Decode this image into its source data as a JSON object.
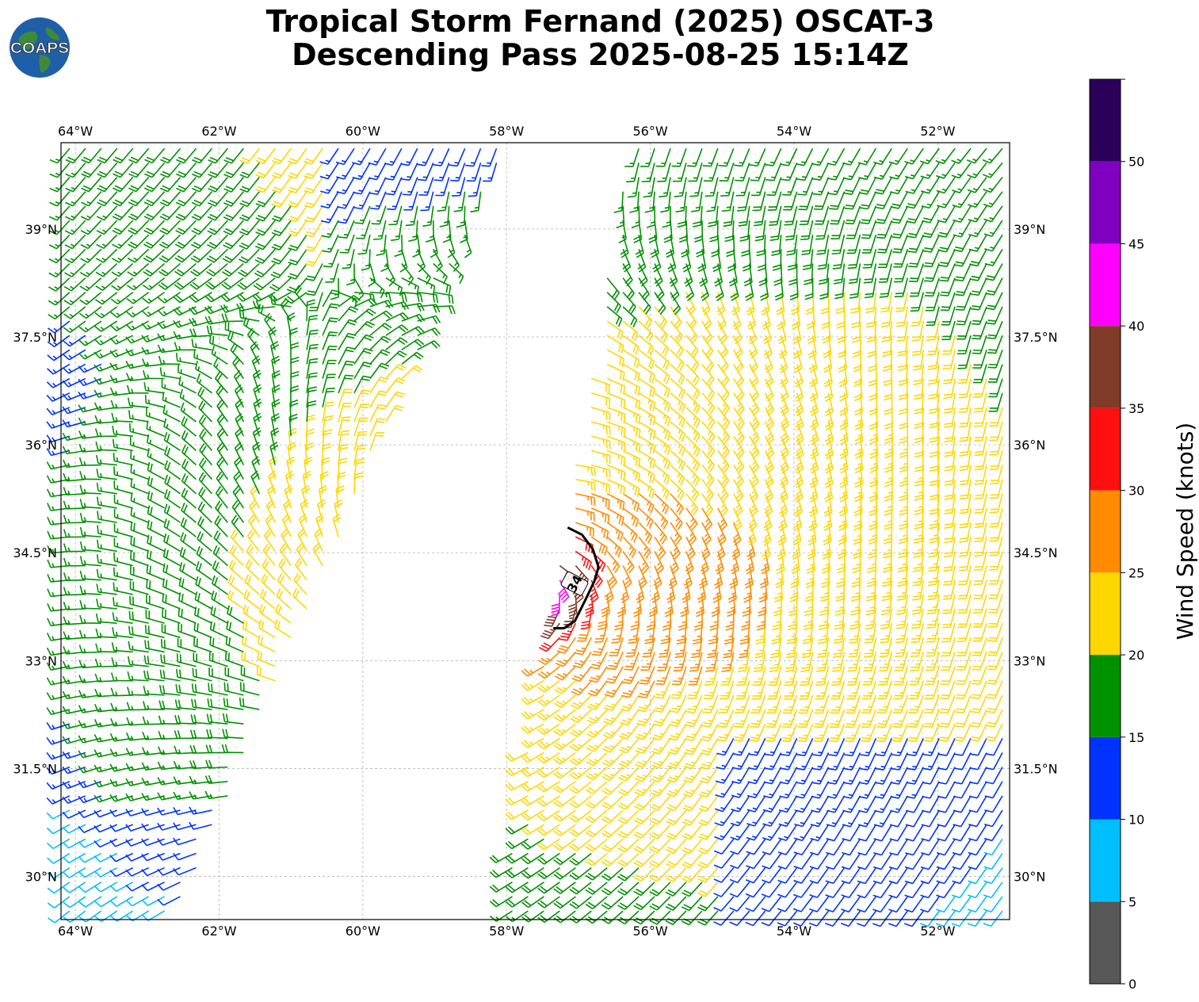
{
  "title": {
    "line1": "Tropical Storm Fernand (2025) OSCAT-3",
    "line2": "Descending Pass 2025-08-25 15:14Z"
  },
  "logo": {
    "text": "COAPS"
  },
  "map": {
    "lon_range": [
      -64.2,
      -51.0
    ],
    "lat_range": [
      29.4,
      40.2
    ],
    "lon_ticks": [
      {
        "value": -64,
        "label": "64°W"
      },
      {
        "value": -62,
        "label": "62°W"
      },
      {
        "value": -60,
        "label": "60°W"
      },
      {
        "value": -58,
        "label": "58°W"
      },
      {
        "value": -56,
        "label": "56°W"
      },
      {
        "value": -54,
        "label": "54°W"
      },
      {
        "value": -52,
        "label": "52°W"
      }
    ],
    "lat_ticks": [
      {
        "value": 39.0,
        "label": "39°N"
      },
      {
        "value": 37.5,
        "label": "37.5°N"
      },
      {
        "value": 36.0,
        "label": "36°N"
      },
      {
        "value": 34.5,
        "label": "34.5°N"
      },
      {
        "value": 33.0,
        "label": "33°N"
      },
      {
        "value": 31.5,
        "label": "31.5°N"
      },
      {
        "value": 30.0,
        "label": "30°N"
      }
    ],
    "grid": true,
    "contour": {
      "label": "34",
      "points": [
        [
          -57.15,
          34.85
        ],
        [
          -56.95,
          34.75
        ],
        [
          -56.8,
          34.55
        ],
        [
          -56.72,
          34.3
        ],
        [
          -56.78,
          34.1
        ],
        [
          -56.9,
          33.85
        ],
        [
          -57.05,
          33.55
        ],
        [
          -57.2,
          33.45
        ],
        [
          -57.35,
          33.45
        ]
      ]
    }
  },
  "colorbar": {
    "title": "Wind Speed (knots)",
    "bins": [
      {
        "min": 0,
        "max": 5,
        "color": "#585858"
      },
      {
        "min": 5,
        "max": 10,
        "color": "#00bfff"
      },
      {
        "min": 10,
        "max": 15,
        "color": "#0033ff"
      },
      {
        "min": 15,
        "max": 20,
        "color": "#009100"
      },
      {
        "min": 20,
        "max": 25,
        "color": "#ffd700"
      },
      {
        "min": 25,
        "max": 30,
        "color": "#ff8c00"
      },
      {
        "min": 30,
        "max": 35,
        "color": "#ff1010"
      },
      {
        "min": 35,
        "max": 40,
        "color": "#803c28"
      },
      {
        "min": 40,
        "max": 45,
        "color": "#ff00ff"
      },
      {
        "min": 45,
        "max": 50,
        "color": "#8000bf"
      },
      {
        "min": 50,
        "max": 55,
        "color": "#2a005a"
      }
    ],
    "tick_labels": [
      "0",
      "5",
      "10",
      "15",
      "20",
      "25",
      "30",
      "35",
      "40",
      "45",
      "50"
    ]
  },
  "wind_field": {
    "units": "knots",
    "storm_center": [
      -57.7,
      34.05
    ],
    "left_swath": {
      "lon_edge_south": -62.6,
      "lat_south": 29.4,
      "lon_edge_north": -58.0,
      "lat_north": 40.2
    },
    "right_swath": {
      "lon_edge_south": -58.1,
      "lat_south": 29.4,
      "lon_edge_north": -56.3,
      "lat_north": 40.2
    }
  }
}
